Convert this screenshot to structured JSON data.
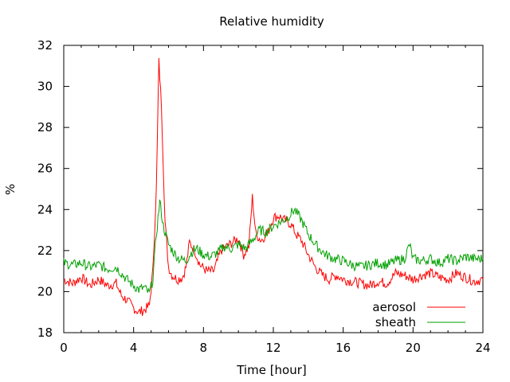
{
  "chart_data": {
    "type": "line",
    "title": "Relative humidity",
    "xlabel": "Time [hour]",
    "ylabel": "%",
    "xlim": [
      0,
      24
    ],
    "ylim": [
      18,
      32
    ],
    "xticks": [
      0,
      4,
      8,
      12,
      16,
      20,
      24
    ],
    "yticks": [
      18,
      20,
      22,
      24,
      26,
      28,
      30,
      32
    ],
    "grid": false,
    "legend_position": "bottom-right",
    "series": [
      {
        "name": "aerosol",
        "color": "#ff0000",
        "x": [
          0,
          0.5,
          1,
          1.5,
          2,
          2.5,
          3,
          3.3,
          3.6,
          4,
          4.3,
          4.6,
          4.9,
          5.1,
          5.3,
          5.45,
          5.6,
          5.8,
          6,
          6.2,
          6.5,
          6.8,
          7,
          7.2,
          7.5,
          7.8,
          8.2,
          8.6,
          9,
          9.5,
          10,
          10.3,
          10.6,
          10.8,
          11,
          11.3,
          11.7,
          12,
          12.3,
          12.6,
          13,
          13.3,
          13.6,
          14,
          14.4,
          14.8,
          15.2,
          15.6,
          16,
          16.5,
          17,
          17.5,
          18,
          18.5,
          19,
          19.5,
          20,
          20.5,
          21,
          21.5,
          22,
          22.5,
          23,
          23.5,
          24
        ],
        "y": [
          20.6,
          20.4,
          20.7,
          20.3,
          20.6,
          20.3,
          20.4,
          19.8,
          19.6,
          19.2,
          19,
          19.1,
          19.3,
          21,
          25,
          31.2,
          29,
          23.4,
          21.2,
          20.8,
          20.6,
          20.7,
          21.2,
          22.4,
          22,
          21.3,
          21,
          21,
          22,
          22.3,
          22.6,
          21.8,
          22.2,
          24.6,
          22.8,
          22.5,
          22.9,
          23.6,
          23.7,
          23.5,
          23.3,
          22.8,
          22.5,
          21.8,
          21.2,
          20.8,
          20.6,
          20.8,
          20.6,
          20.5,
          20.4,
          20.3,
          20.5,
          20.4,
          20.9,
          20.8,
          20.6,
          20.8,
          20.9,
          20.7,
          20.6,
          20.9,
          20.7,
          20.5,
          20.6
        ]
      },
      {
        "name": "sheath",
        "color": "#00a000",
        "x": [
          0,
          0.5,
          1,
          1.5,
          2,
          2.5,
          3,
          3.3,
          3.6,
          4,
          4.3,
          4.6,
          4.9,
          5.1,
          5.3,
          5.5,
          5.7,
          6,
          6.3,
          6.6,
          7,
          7.3,
          7.6,
          8,
          8.4,
          8.8,
          9.2,
          9.6,
          10,
          10.4,
          10.8,
          11.2,
          11.6,
          12,
          12.4,
          12.8,
          13.2,
          13.6,
          14,
          14.5,
          15,
          15.5,
          16,
          16.5,
          17,
          17.5,
          18,
          18.5,
          19,
          19.5,
          19.8,
          20,
          20.5,
          21,
          21.5,
          22,
          22.5,
          23,
          23.5,
          24
        ],
        "y": [
          21.4,
          21.3,
          21.4,
          21.2,
          21.3,
          21.1,
          21.2,
          20.9,
          20.6,
          20.3,
          20.1,
          20.2,
          19.9,
          20.6,
          22.8,
          24.4,
          23.2,
          22.3,
          21.9,
          21.6,
          21.5,
          21.9,
          22.1,
          21.8,
          21.7,
          21.9,
          22.2,
          22.1,
          22.3,
          22.1,
          22.5,
          23,
          22.9,
          23.2,
          23.4,
          23.6,
          24,
          23.5,
          22.8,
          22.2,
          21.8,
          21.6,
          21.5,
          21.3,
          21.2,
          21.3,
          21.4,
          21.3,
          21.5,
          21.6,
          22.3,
          21.6,
          21.5,
          21.6,
          21.4,
          21.6,
          21.5,
          21.7,
          21.6,
          21.6
        ]
      }
    ]
  }
}
